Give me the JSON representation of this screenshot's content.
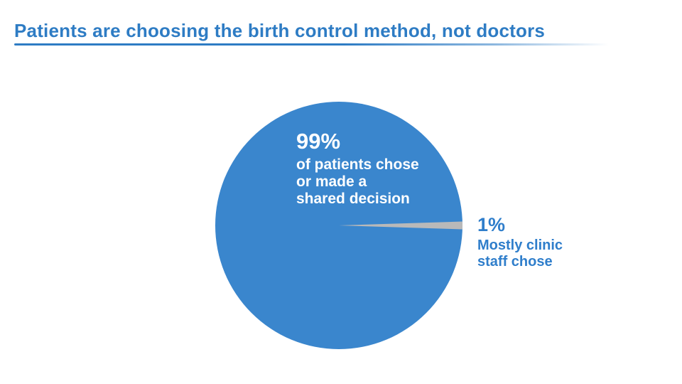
{
  "slide": {
    "title": "Patients are choosing the birth control method, not doctors"
  },
  "colors": {
    "accent_blue": "#2e7cc4",
    "pie_blue": "#3a86cd",
    "pie_gray": "#b9b9b9",
    "inner_label_white": "#ffffff"
  },
  "chart_data": {
    "type": "pie",
    "title": "Patients are choosing the birth control method, not doctors",
    "legend_position": "none",
    "start_angle_deg": 0,
    "radius_px": 174,
    "slices": [
      {
        "label": "of patients chose or made a shared decision",
        "value": 99,
        "color": "#3a86cd"
      },
      {
        "label": "Mostly clinic staff chose",
        "value": 1,
        "color": "#b9b9b9"
      }
    ]
  },
  "labels": {
    "majority": {
      "pct": "99%",
      "lines": [
        "of patients chose",
        "or made a",
        "shared decision"
      ]
    },
    "minority": {
      "pct": "1%",
      "lines": [
        "Mostly clinic",
        "staff chose"
      ]
    }
  }
}
